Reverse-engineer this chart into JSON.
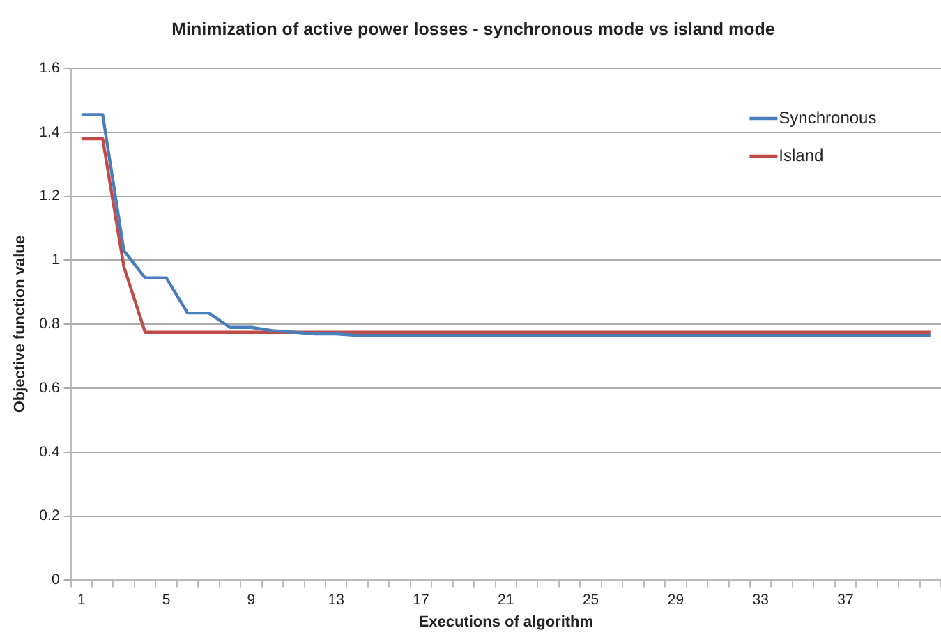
{
  "chart_data": {
    "type": "line",
    "title": "Minimization of active power losses - synchronous mode vs island mode",
    "xlabel": "Executions of algorithm",
    "ylabel": "Objective function value",
    "categories": [
      "1",
      null,
      null,
      null,
      "5",
      null,
      null,
      null,
      "9",
      null,
      null,
      null,
      "13",
      null,
      null,
      null,
      "17",
      null,
      null,
      null,
      "21",
      null,
      null,
      null,
      "25",
      null,
      null,
      null,
      "29",
      null,
      null,
      null,
      "33",
      null,
      null,
      null,
      "37",
      null,
      null,
      null,
      null
    ],
    "series": [
      {
        "name": "Synchronous",
        "color": "#4a7ebb",
        "values": [
          1.455,
          1.455,
          1.03,
          0.945,
          0.945,
          0.835,
          0.835,
          0.79,
          0.79,
          0.78,
          0.775,
          0.77,
          0.77,
          0.765,
          0.765,
          0.765,
          0.765,
          0.765,
          0.765,
          0.765,
          0.765,
          0.765,
          0.765,
          0.765,
          0.765,
          0.765,
          0.765,
          0.765,
          0.765,
          0.765,
          0.765,
          0.765,
          0.765,
          0.765,
          0.765,
          0.765,
          0.765,
          0.765,
          0.765,
          0.765,
          0.765
        ]
      },
      {
        "name": "Island",
        "color": "#be4b48",
        "values": [
          1.38,
          1.38,
          0.98,
          0.775,
          0.775,
          0.775,
          0.775,
          0.775,
          0.775,
          0.775,
          0.775,
          0.775,
          0.775,
          0.775,
          0.775,
          0.775,
          0.775,
          0.775,
          0.775,
          0.775,
          0.775,
          0.775,
          0.775,
          0.775,
          0.775,
          0.775,
          0.775,
          0.775,
          0.775,
          0.775,
          0.775,
          0.775,
          0.775,
          0.775,
          0.775,
          0.775,
          0.775,
          0.775,
          0.775,
          0.775,
          0.775
        ]
      }
    ],
    "ylim": [
      0,
      1.6
    ],
    "yticks": [
      0,
      0.2,
      0.4,
      0.6,
      0.8,
      1,
      1.2,
      1.4,
      1.6
    ],
    "grid": "y",
    "legend": "top right",
    "marker": "none",
    "line_style": "solid"
  }
}
